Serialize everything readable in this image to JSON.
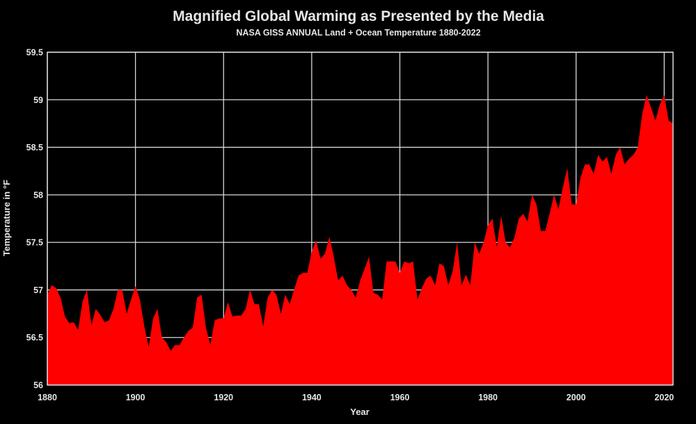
{
  "chart_data": {
    "type": "area",
    "title": "Magnified Global Warming as Presented by the Media",
    "subtitle": "NASA GISS ANNUAL Land + Ocean Temperature 1880-2022",
    "xlabel": "Year",
    "ylabel": "Temperature in °F",
    "xlim": [
      1880,
      2022
    ],
    "ylim": [
      56,
      59.5
    ],
    "x_ticks": [
      1880,
      1900,
      1920,
      1940,
      1960,
      1980,
      2000,
      2020
    ],
    "y_ticks": [
      56,
      56.5,
      57,
      57.5,
      58,
      58.5,
      59,
      59.5
    ],
    "y_tick_labels": [
      "56",
      "56.5",
      "57",
      "57.5",
      "58",
      "58.5",
      "59",
      "59.5"
    ],
    "grid": true,
    "fill_color": "#ff0000",
    "series": [
      {
        "x": [
          1880,
          1881,
          1882,
          1883,
          1884,
          1885,
          1886,
          1887,
          1888,
          1889,
          1890,
          1891,
          1892,
          1893,
          1894,
          1895,
          1896,
          1897,
          1898,
          1899,
          1900,
          1901,
          1902,
          1903,
          1904,
          1905,
          1906,
          1907,
          1908,
          1909,
          1910,
          1911,
          1912,
          1913,
          1914,
          1915,
          1916,
          1917,
          1918,
          1919,
          1920,
          1921,
          1922,
          1923,
          1924,
          1925,
          1926,
          1927,
          1928,
          1929,
          1930,
          1931,
          1932,
          1933,
          1934,
          1935,
          1936,
          1937,
          1938,
          1939,
          1940,
          1941,
          1942,
          1943,
          1944,
          1945,
          1946,
          1947,
          1948,
          1949,
          1950,
          1951,
          1952,
          1953,
          1954,
          1955,
          1956,
          1957,
          1958,
          1959,
          1960,
          1961,
          1962,
          1963,
          1964,
          1965,
          1966,
          1967,
          1968,
          1969,
          1970,
          1971,
          1972,
          1973,
          1974,
          1975,
          1976,
          1977,
          1978,
          1979,
          1980,
          1981,
          1982,
          1983,
          1984,
          1985,
          1986,
          1987,
          1988,
          1989,
          1990,
          1991,
          1992,
          1993,
          1994,
          1995,
          1996,
          1997,
          1998,
          1999,
          2000,
          2001,
          2002,
          2003,
          2004,
          2005,
          2006,
          2007,
          2008,
          2009,
          2010,
          2011,
          2012,
          2013,
          2014,
          2015,
          2016,
          2017,
          2018,
          2019,
          2020,
          2021,
          2022
        ],
        "values": [
          56.95,
          57.05,
          57.02,
          56.92,
          56.72,
          56.65,
          56.66,
          56.58,
          56.88,
          57.0,
          56.63,
          56.8,
          56.74,
          56.66,
          56.68,
          56.8,
          57.0,
          57.0,
          56.75,
          56.9,
          57.04,
          56.9,
          56.62,
          56.4,
          56.7,
          56.8,
          56.5,
          56.45,
          56.36,
          56.42,
          56.42,
          56.5,
          56.57,
          56.6,
          56.92,
          56.95,
          56.6,
          56.42,
          56.68,
          56.7,
          56.7,
          56.87,
          56.72,
          56.73,
          56.73,
          56.8,
          57.0,
          56.85,
          56.85,
          56.62,
          56.92,
          57.0,
          56.95,
          56.75,
          56.95,
          56.85,
          57.0,
          57.15,
          57.18,
          57.18,
          57.4,
          57.52,
          57.33,
          57.38,
          57.56,
          57.35,
          57.1,
          57.15,
          57.05,
          57.0,
          56.92,
          57.1,
          57.22,
          57.35,
          56.97,
          56.95,
          56.9,
          57.3,
          57.3,
          57.3,
          57.18,
          57.3,
          57.28,
          57.3,
          56.9,
          57.02,
          57.12,
          57.15,
          57.05,
          57.28,
          57.25,
          57.05,
          57.2,
          57.5,
          57.05,
          57.16,
          57.05,
          57.5,
          57.38,
          57.5,
          57.68,
          57.75,
          57.45,
          57.78,
          57.5,
          57.45,
          57.55,
          57.75,
          57.8,
          57.72,
          58.0,
          57.9,
          57.62,
          57.62,
          57.8,
          58.0,
          57.85,
          58.08,
          58.28,
          57.9,
          57.9,
          58.18,
          58.32,
          58.32,
          58.22,
          58.42,
          58.35,
          58.4,
          58.22,
          58.42,
          58.5,
          58.32,
          58.38,
          58.42,
          58.5,
          58.85,
          59.05,
          58.92,
          58.78,
          58.95,
          59.05,
          58.78,
          58.75
        ],
        "color": "#ff0000"
      }
    ]
  }
}
